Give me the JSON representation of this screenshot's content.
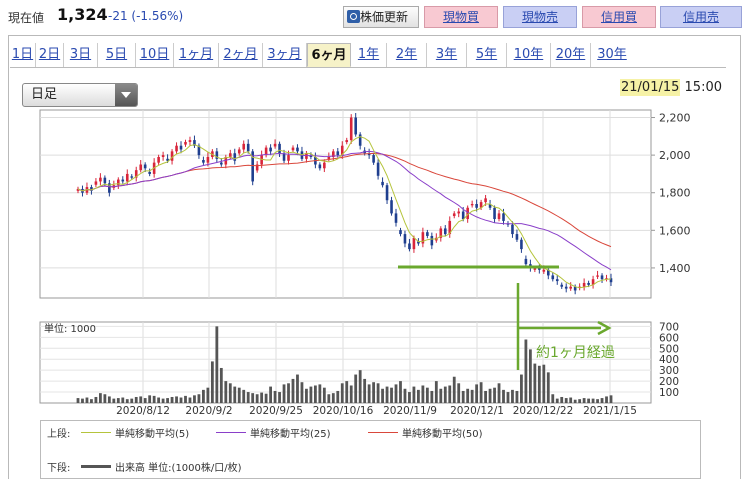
{
  "header": {
    "price_label": "現在値",
    "price_value": "1,324",
    "price_change": "-21 (-1.56%)",
    "update_button": "株価更新",
    "buy_spot": "現物買",
    "sell_spot": "現物売",
    "buy_margin": "信用買",
    "sell_margin": "信用売"
  },
  "periods": [
    "1日",
    "2日",
    "3日",
    "5日",
    "10日",
    "1ヶ月",
    "2ヶ月",
    "3ヶ月",
    "6ヶ月",
    "1年",
    "2年",
    "3年",
    "5年",
    "10年",
    "20年",
    "30年"
  ],
  "active_period": "6ヶ月",
  "interval": "日足",
  "datetime": {
    "date": "21/01/15",
    "time": "15:00"
  },
  "legend": {
    "upper_label": "上段:",
    "lower_label": "下段:",
    "ma5": "単純移動平均(5)",
    "ma25": "単純移動平均(25)",
    "ma50": "単純移動平均(50)",
    "volume": "出来高 単位:(1000株/口/枚)"
  },
  "colors": {
    "up": "#d9253a",
    "down": "#1f3f8f",
    "ma5": "#b5c43c",
    "ma25": "#8a3fc9",
    "ma50": "#d9473b",
    "annotation": "#6aa82e"
  },
  "chart_data": {
    "type": "candlestick",
    "x_tick_labels": [
      "2020/8/12",
      "2020/9/2",
      "2020/9/25",
      "2020/10/16",
      "2020/11/9",
      "2020/12/1",
      "2020/12/22",
      "2021/1/15"
    ],
    "price_axis": {
      "ticks": [
        1400,
        1600,
        1800,
        2000,
        2200
      ],
      "ylim": [
        1240,
        2240
      ]
    },
    "volume_axis": {
      "ticks": [
        100,
        200,
        300,
        400,
        500,
        600,
        700
      ],
      "ylim": [
        0,
        740
      ],
      "unit_label": "単位: 1000"
    },
    "annotation": "約1ヶ月経過",
    "close": [
      1820,
      1800,
      1830,
      1810,
      1860,
      1880,
      1850,
      1800,
      1840,
      1870,
      1860,
      1900,
      1880,
      1920,
      1950,
      1930,
      1900,
      1960,
      1990,
      2000,
      1970,
      2020,
      2050,
      2030,
      2070,
      2080,
      2050,
      2000,
      1960,
      1990,
      2020,
      1980,
      1950,
      1990,
      2010,
      1970,
      2030,
      2060,
      2020,
      1860,
      1950,
      2000,
      2040,
      2020,
      2060,
      2010,
      1970,
      2000,
      2040,
      2020,
      1980,
      2010,
      1990,
      1950,
      1930,
      1960,
      1990,
      2020,
      2000,
      2050,
      2080,
      2200,
      2110,
      2050,
      2010,
      2000,
      1960,
      1890,
      1840,
      1760,
      1690,
      1640,
      1580,
      1530,
      1500,
      1560,
      1530,
      1590,
      1570,
      1520,
      1560,
      1610,
      1580,
      1650,
      1690,
      1700,
      1660,
      1720,
      1740,
      1720,
      1750,
      1770,
      1720,
      1660,
      1690,
      1650,
      1630,
      1580,
      1550,
      1500,
      1420,
      1400,
      1400,
      1390,
      1390,
      1360,
      1340,
      1330,
      1300,
      1290,
      1300,
      1280,
      1300,
      1320,
      1310,
      1340,
      1360,
      1340,
      1345,
      1324
    ],
    "volume": [
      45,
      40,
      50,
      35,
      55,
      90,
      80,
      60,
      40,
      45,
      50,
      35,
      40,
      55,
      60,
      45,
      70,
      65,
      50,
      40,
      45,
      55,
      60,
      50,
      65,
      50,
      70,
      80,
      120,
      140,
      380,
      700,
      320,
      200,
      180,
      150,
      140,
      120,
      100,
      90,
      80,
      95,
      85,
      150,
      110,
      100,
      170,
      180,
      220,
      260,
      190,
      130,
      150,
      160,
      170,
      140,
      80,
      90,
      110,
      180,
      200,
      160,
      260,
      300,
      220,
      170,
      190,
      180,
      130,
      150,
      140,
      170,
      200,
      130,
      100,
      150,
      120,
      160,
      140,
      110,
      200,
      130,
      150,
      160,
      240,
      180,
      110,
      130,
      120,
      170,
      190,
      110,
      130,
      140,
      180,
      120,
      100,
      120,
      110,
      260,
      580,
      490,
      360,
      340,
      350,
      280,
      80,
      40,
      55,
      45,
      50,
      30,
      35,
      45,
      40,
      40,
      35,
      45,
      60,
      70
    ]
  }
}
